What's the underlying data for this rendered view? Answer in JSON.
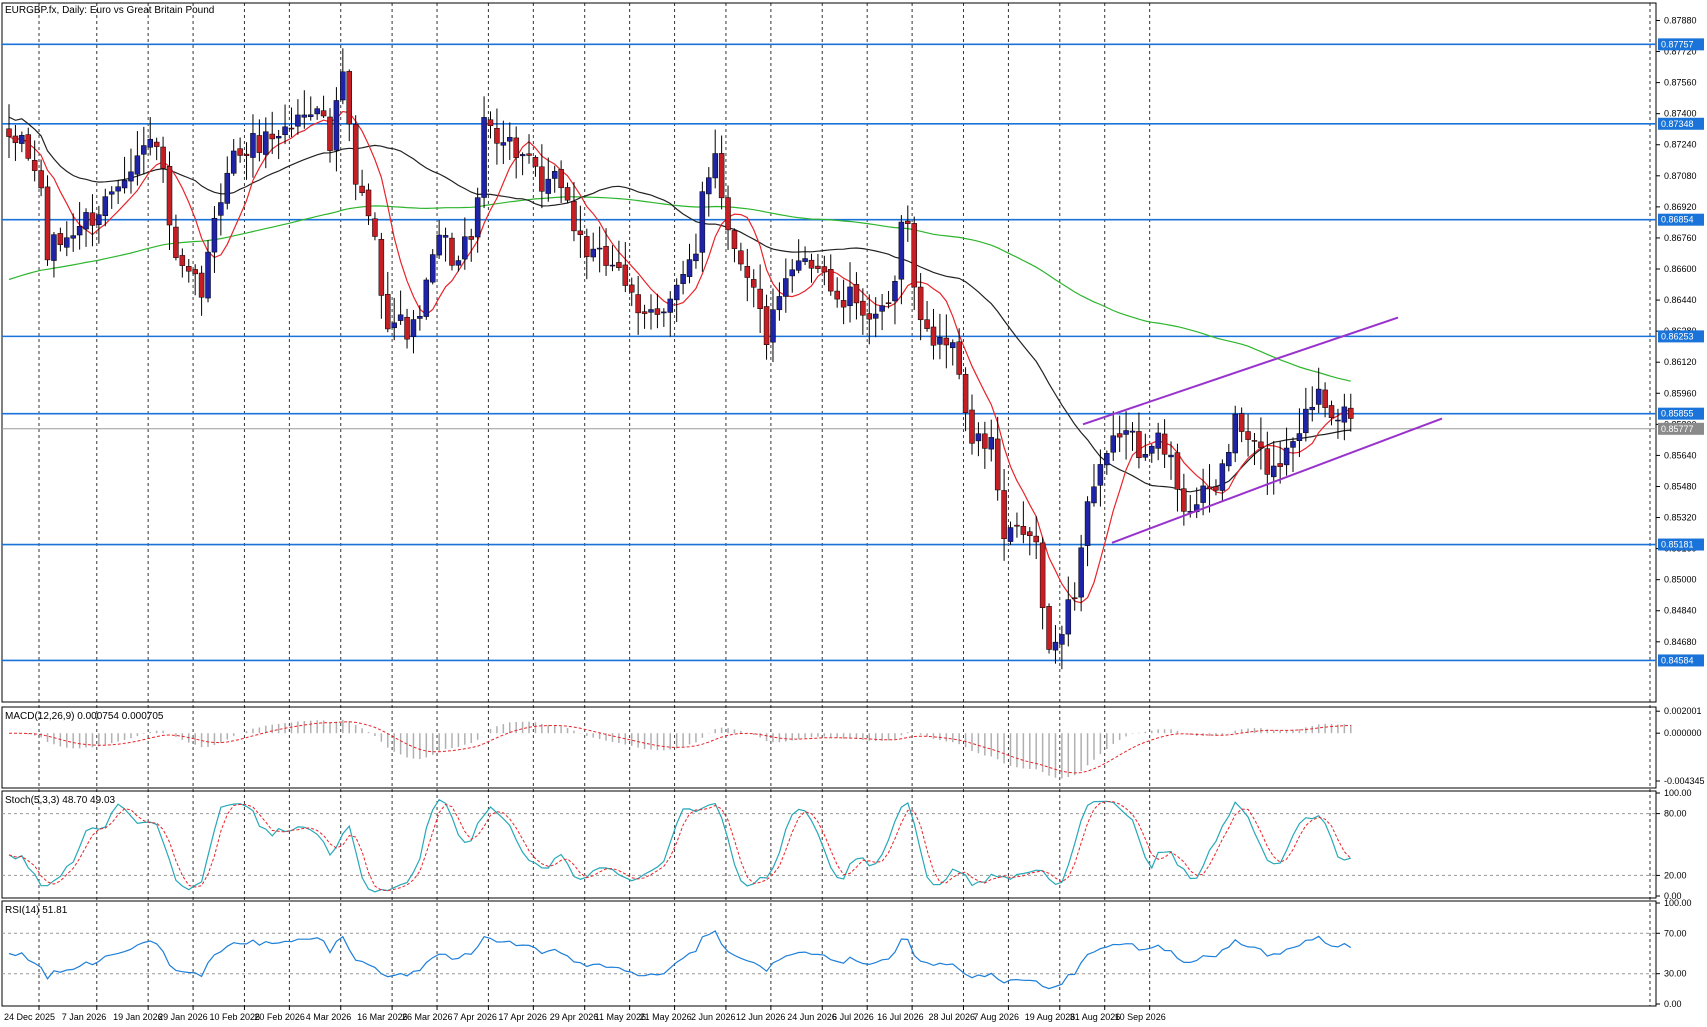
{
  "header": {
    "symbol": "EURGBP.fx",
    "timeframe": "Daily",
    "description": "Euro vs Great Britain Pound"
  },
  "colors": {
    "bull": "#1e23a8",
    "bear": "#c51f25",
    "level": "#1a73d9",
    "channel": "#9932cc",
    "ma_fast": "#e8242a",
    "ma_mid": "#222222",
    "ma_slow": "#2db52d",
    "stoch_main": "#27a8b8",
    "stoch_signal": "#e8242a",
    "rsi": "#1e7fd9",
    "macd_signal": "#e8242a",
    "macd_hist": "#b0b0b0"
  },
  "chart_data": {
    "type": "candlestick",
    "price_axis": {
      "ylim": [
        0.8437,
        0.8797
      ],
      "ticks": [
        "0.87880",
        "0.87720",
        "0.87560",
        "0.87400",
        "0.87240",
        "0.87080",
        "0.86920",
        "0.86760",
        "0.86600",
        "0.86440",
        "0.86280",
        "0.86120",
        "0.85960",
        "0.85800",
        "0.85640",
        "0.85480",
        "0.85320",
        "0.85160",
        "0.85000",
        "0.84840",
        "0.84680"
      ]
    },
    "levels": [
      0.87757,
      0.87348,
      0.86854,
      0.86253,
      0.85855,
      0.85181,
      0.84584
    ],
    "level_labels": [
      "0.87757",
      "0.87348",
      "0.86854",
      "0.86253",
      "0.85855",
      "0.85181",
      "0.84584"
    ],
    "current_price": 0.85777,
    "current_label": "0.85777",
    "date_labels": [
      "24 Dec 2025",
      "7 Jan 2026",
      "19 Jan 2026",
      "29 Jan 2026",
      "10 Feb 2026",
      "20 Feb 2026",
      "4 Mar 2026",
      "16 Mar 2026",
      "26 Mar 2026",
      "7 Apr 2026",
      "17 Apr 2026",
      "29 Apr 2026",
      "11 May 2026",
      "21 May 2026",
      "2 Jun 2026",
      "12 Jun 2026",
      "24 Jun 2026",
      "6 Jul 2026",
      "16 Jul 2026",
      "28 Jul 2026",
      "7 Aug 2026",
      "19 Aug 2026",
      "31 Aug 2026",
      "10 Sep 2026"
    ],
    "channel": {
      "upper": [
        [
          0.858,
          0.8592
        ],
        [
          0.8623,
          0.8635
        ]
      ],
      "lower": [
        [
          0.8519,
          0.8531
        ],
        [
          0.8571,
          0.8583
        ]
      ]
    },
    "keypoints": [
      [
        0,
        0.8722
      ],
      [
        2,
        0.8728
      ],
      [
        5,
        0.87
      ],
      [
        6,
        0.8668
      ],
      [
        10,
        0.868
      ],
      [
        14,
        0.869
      ],
      [
        18,
        0.8712
      ],
      [
        23,
        0.8728
      ],
      [
        26,
        0.866
      ],
      [
        30,
        0.8648
      ],
      [
        34,
        0.8715
      ],
      [
        38,
        0.8724
      ],
      [
        44,
        0.8734
      ],
      [
        48,
        0.8748
      ],
      [
        50,
        0.8722
      ],
      [
        52,
        0.876
      ],
      [
        54,
        0.8702
      ],
      [
        56,
        0.869
      ],
      [
        59,
        0.8635
      ],
      [
        63,
        0.8628
      ],
      [
        65,
        0.865
      ],
      [
        67,
        0.8676
      ],
      [
        70,
        0.8663
      ],
      [
        73,
        0.869
      ],
      [
        74,
        0.8737
      ],
      [
        77,
        0.8728
      ],
      [
        80,
        0.8718
      ],
      [
        83,
        0.87
      ],
      [
        86,
        0.8706
      ],
      [
        88,
        0.8682
      ],
      [
        91,
        0.8664
      ],
      [
        95,
        0.8664
      ],
      [
        98,
        0.8632
      ],
      [
        101,
        0.864
      ],
      [
        104,
        0.865
      ],
      [
        107,
        0.8664
      ],
      [
        108,
        0.87
      ],
      [
        110,
        0.8722
      ],
      [
        112,
        0.868
      ],
      [
        115,
        0.866
      ],
      [
        118,
        0.8625
      ],
      [
        121,
        0.865
      ],
      [
        124,
        0.8668
      ],
      [
        127,
        0.866
      ],
      [
        129,
        0.864
      ],
      [
        132,
        0.8646
      ],
      [
        135,
        0.863
      ],
      [
        138,
        0.8648
      ],
      [
        139,
        0.8682
      ],
      [
        140,
        0.869
      ],
      [
        141,
        0.8648
      ],
      [
        143,
        0.8625
      ],
      [
        146,
        0.8625
      ],
      [
        148,
        0.8608
      ],
      [
        150,
        0.857
      ],
      [
        153,
        0.857
      ],
      [
        155,
        0.852
      ],
      [
        158,
        0.8525
      ],
      [
        160,
        0.8517
      ],
      [
        162,
        0.8458
      ],
      [
        164,
        0.8478
      ],
      [
        166,
        0.8495
      ],
      [
        168,
        0.854
      ],
      [
        171,
        0.856
      ],
      [
        173,
        0.8578
      ],
      [
        176,
        0.8568
      ],
      [
        178,
        0.8575
      ],
      [
        181,
        0.856
      ],
      [
        183,
        0.854
      ],
      [
        185,
        0.8538
      ],
      [
        188,
        0.8548
      ],
      [
        191,
        0.858
      ],
      [
        194,
        0.8568
      ],
      [
        197,
        0.8555
      ],
      [
        199,
        0.857
      ],
      [
        202,
        0.8585
      ],
      [
        204,
        0.86
      ],
      [
        206,
        0.859
      ],
      [
        209,
        0.8583
      ]
    ],
    "macd": {
      "label": "MACD(12,26,9) 0.000754 0.000705",
      "ticks": [
        "0.002001",
        "0.000000",
        "-0.004345"
      ],
      "ylim": [
        -0.0048,
        0.0022
      ]
    },
    "stoch": {
      "label": "Stoch(5,3,3) 48.70 49.03",
      "ticks": [
        "100.00",
        "80.00",
        "20.00",
        "0.00"
      ],
      "levels": [
        80,
        20
      ]
    },
    "rsi": {
      "label": "RSI(14) 51.81",
      "ticks": [
        "100.00",
        "70.00",
        "30.00",
        "0.00"
      ],
      "levels": [
        70,
        30
      ]
    }
  }
}
